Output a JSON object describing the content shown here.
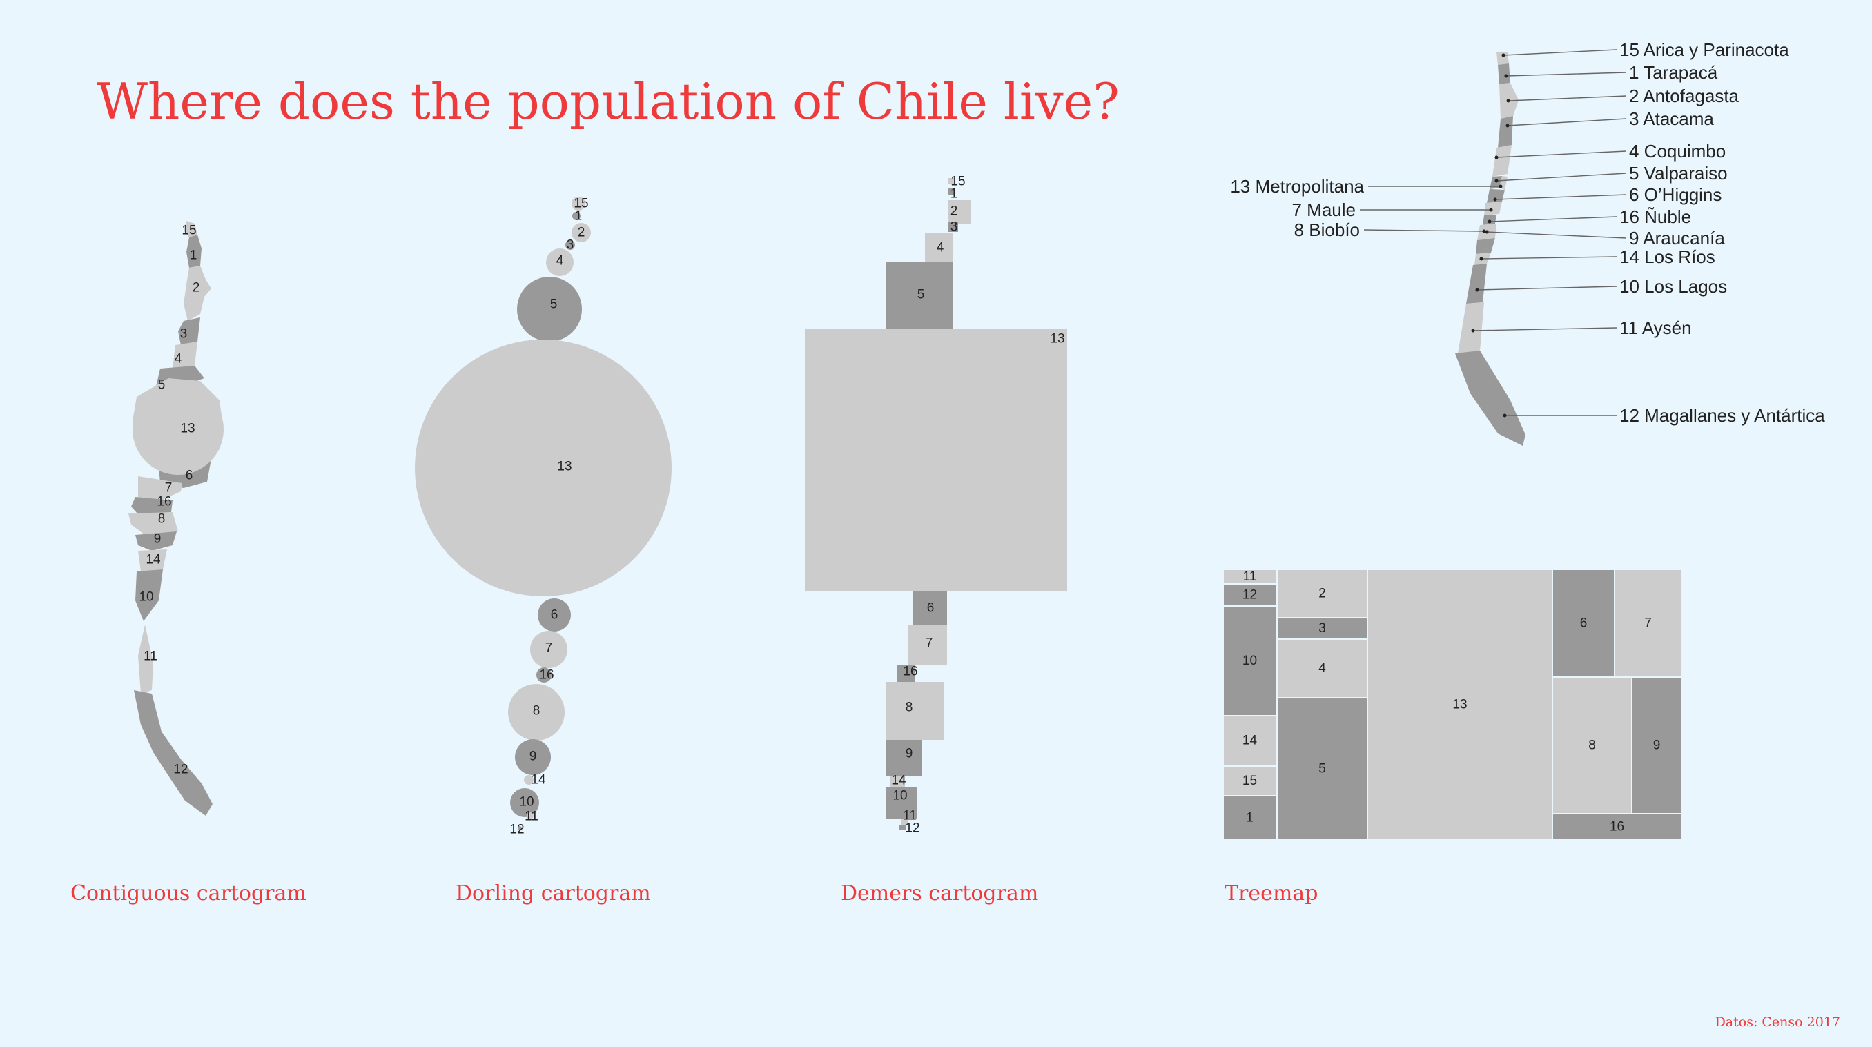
{
  "title": "Where does the population of Chile live?",
  "captions": {
    "contiguous": "Contiguous cartogram",
    "dorling": "Dorling cartogram",
    "demers": "Demers cartogram",
    "treemap": "Treemap"
  },
  "credit": "Datos: Censo 2017",
  "colors": {
    "background": "#eaf6fd",
    "dark": "#999999",
    "light": "#cccccc",
    "accent": "#ee3a3a"
  },
  "regions": [
    {
      "code": "15",
      "name": "15 Arica y Parinacota"
    },
    {
      "code": "1",
      "name": "1 Tarapacá"
    },
    {
      "code": "2",
      "name": "2 Antofagasta"
    },
    {
      "code": "3",
      "name": "3 Atacama"
    },
    {
      "code": "4",
      "name": "4 Coquimbo"
    },
    {
      "code": "5",
      "name": "5 Valparaiso"
    },
    {
      "code": "13",
      "name": "13 Metropolitana"
    },
    {
      "code": "6",
      "name": "6 O’Higgins"
    },
    {
      "code": "7",
      "name": "7 Maule"
    },
    {
      "code": "16",
      "name": "16 Ñuble"
    },
    {
      "code": "8",
      "name": "8 Biobío"
    },
    {
      "code": "9",
      "name": "9 Araucanía"
    },
    {
      "code": "14",
      "name": "14 Los Ríos"
    },
    {
      "code": "10",
      "name": "10 Los Lagos"
    },
    {
      "code": "11",
      "name": "11 Aysén"
    },
    {
      "code": "12",
      "name": "12 Magallanes y Antártica"
    }
  ]
}
